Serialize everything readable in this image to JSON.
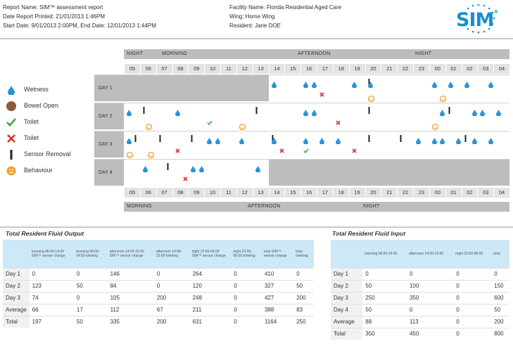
{
  "header": {
    "report_name": "Report Name: SIM™ assessment report",
    "date_printed": "Date Report Printed: 21/01/2013 1:46PM",
    "start_end": "Start Date: 9/01/2013 2:00PM, End Date: 12/01/2013 1:44PM",
    "facility": "Facility Name: Florida Residential Aged Care",
    "wing": "Wing: Home Wing",
    "resident": "Resident: Jane DOE",
    "logo": "SIM",
    "logo_mark": "®"
  },
  "colors": {
    "accent": "#1a8fd0",
    "wet": "#2a93d5",
    "bowel": "#8a5a3c",
    "toilet_ok": "#3aa63a",
    "toilet_x": "#d9302b",
    "sensor": "#222222",
    "behaviour": "#f0a030",
    "grey": "#bdbdbd"
  },
  "legend": [
    {
      "icon": "droplet-icon",
      "label": "Wetness"
    },
    {
      "icon": "circle-icon",
      "label": "Bowel Open"
    },
    {
      "icon": "check-icon",
      "label": "Toilet"
    },
    {
      "icon": "cross-icon",
      "label": "Toilet"
    },
    {
      "icon": "bar-icon",
      "label": "Sensor Removal"
    },
    {
      "icon": "face-icon",
      "label": "Behaviour"
    }
  ],
  "shifts_top": [
    "NIGHT",
    "MORNING",
    "AFTERNOON",
    "NIGHT"
  ],
  "shifts_bottom": [
    "MORNING",
    "AFTERNOON",
    "NIGHT"
  ],
  "hours": [
    "05",
    "06",
    "07",
    "08",
    "09",
    "10",
    "11",
    "12",
    "13",
    "14",
    "15",
    "16",
    "17",
    "18",
    "19",
    "20",
    "21",
    "22",
    "23",
    "00",
    "01",
    "02",
    "03",
    "04"
  ],
  "days": [
    {
      "label": "DAY 1",
      "greyed": [
        0,
        9
      ],
      "wet": [
        9,
        11,
        11.5,
        14,
        15,
        19,
        20,
        21,
        22.5
      ],
      "cross": [
        12
      ],
      "sensor": [
        15
      ],
      "behaviour": [
        15,
        19.5
      ]
    },
    {
      "label": "DAY 2",
      "greyed": null,
      "wet": [
        0,
        3,
        11,
        11.5,
        19.5,
        21.5,
        22,
        23
      ],
      "check": [
        5
      ],
      "cross": [
        13
      ],
      "sensor": [
        1,
        8,
        15,
        20
      ],
      "behaviour": [
        1.2,
        7,
        19
      ]
    },
    {
      "label": "DAY 3",
      "greyed": null,
      "wet": [
        0,
        5,
        5.5,
        7,
        9,
        11,
        12,
        13,
        18,
        19,
        19.5,
        20.5,
        21.5,
        22.5
      ],
      "check": [
        11
      ],
      "cross": [
        3,
        9.5,
        14
      ],
      "sensor": [
        0.5,
        2,
        4,
        9,
        15,
        17,
        21
      ],
      "behaviour": [
        0,
        1.3
      ]
    },
    {
      "label": "DAY 4",
      "greyed": [
        9,
        24
      ],
      "wet": [
        1,
        4,
        4.5,
        8
      ],
      "cross": [
        3.5
      ],
      "sensor": [
        2.5
      ]
    }
  ],
  "output_table": {
    "title": "Total Resident Fluid Output",
    "headers": [
      "",
      "morning 06:00-14:00 SIM™ sensor change",
      "morning 06:00-14:00 toileting",
      "afternoon 14:00-22:00 SIM™ sensor change",
      "afternoon 14:00-22:00 toileting",
      "night 22:00-06:00 SIM™ sensor change",
      "night 22:00-06:00 toileting",
      "total SIM™ sensor change",
      "total toileting"
    ],
    "rows": [
      [
        "Day 1",
        "0",
        "0",
        "146",
        "0",
        "264",
        "0",
        "410",
        "0"
      ],
      [
        "Day 2",
        "123",
        "50",
        "84",
        "0",
        "120",
        "0",
        "327",
        "50"
      ],
      [
        "Day 3",
        "74",
        "0",
        "105",
        "200",
        "248",
        "0",
        "427",
        "200"
      ],
      [
        "Average",
        "66",
        "17",
        "112",
        "67",
        "211",
        "0",
        "388",
        "83"
      ],
      [
        "Total",
        "197",
        "50",
        "335",
        "200",
        "631",
        "0",
        "1164",
        "250"
      ]
    ]
  },
  "input_table": {
    "title": "Total Resident Fluid Input",
    "headers": [
      "",
      "morning 06:00-14:00",
      "afternoon 14:00-22:00",
      "night 22:00-06:00",
      "total"
    ],
    "rows": [
      [
        "Day 1",
        "0",
        "0",
        "0",
        "0"
      ],
      [
        "Day 2",
        "50",
        "100",
        "0",
        "150"
      ],
      [
        "Day 3",
        "250",
        "350",
        "0",
        "600"
      ],
      [
        "Day 4",
        "50",
        "0",
        "0",
        "50"
      ],
      [
        "Average",
        "88",
        "113",
        "0",
        "200"
      ],
      [
        "Total",
        "350",
        "450",
        "0",
        "800"
      ]
    ]
  }
}
